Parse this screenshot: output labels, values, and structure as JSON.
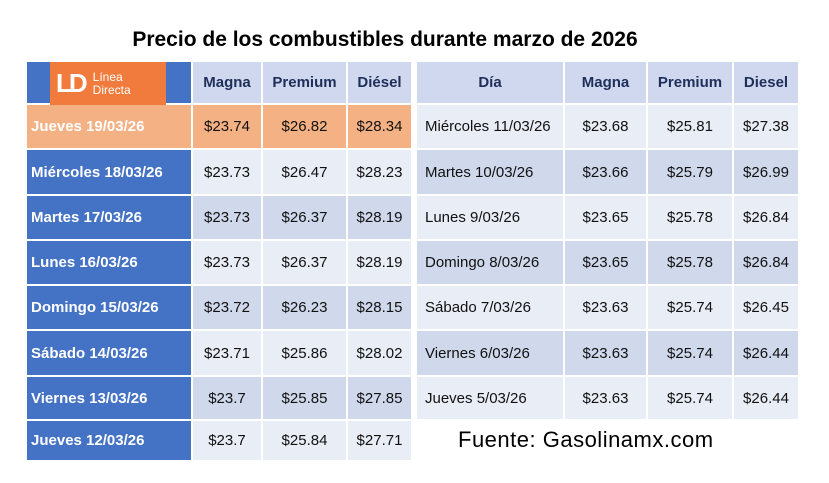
{
  "title": "Precio de los combustibles durante marzo de 2026",
  "logo": {
    "mark": "LD",
    "text": "Línea Directa"
  },
  "left_table": {
    "header": [
      "Magna",
      "Premium",
      "Diésel"
    ],
    "rows": [
      [
        "Jueves 19/03/26",
        "$23.74",
        "$26.82",
        "$28.34"
      ],
      [
        "Miércoles 18/03/26",
        "$23.73",
        "$26.47",
        "$28.23"
      ],
      [
        "Martes 17/03/26",
        "$23.73",
        "$26.37",
        "$28.19"
      ],
      [
        "Lunes 16/03/26",
        "$23.73",
        "$26.37",
        "$28.19"
      ],
      [
        "Domingo 15/03/26",
        "$23.72",
        "$26.23",
        "$28.15"
      ],
      [
        "Sábado 14/03/26",
        "$23.71",
        "$25.86",
        "$28.02"
      ],
      [
        "Viernes 13/03/26",
        "$23.7",
        "$25.85",
        "$27.85"
      ],
      [
        "Jueves 12/03/26",
        "$23.7",
        "$25.84",
        "$27.71"
      ]
    ]
  },
  "right_table": {
    "header": [
      "Día",
      "Magna",
      "Premium",
      "Diesel"
    ],
    "rows": [
      [
        "Miércoles 11/03/26",
        "$23.68",
        "$25.81",
        "$27.38"
      ],
      [
        "Martes 10/03/26",
        "$23.66",
        "$25.79",
        "$26.99"
      ],
      [
        "Lunes 9/03/26",
        "$23.65",
        "$25.78",
        "$26.84"
      ],
      [
        "Domingo 8/03/26",
        "$23.65",
        "$25.78",
        "$26.84"
      ],
      [
        "Sábado 7/03/26",
        "$23.63",
        "$25.74",
        "$26.45"
      ],
      [
        "Viernes 6/03/26",
        "$23.63",
        "$25.74",
        "$26.44"
      ],
      [
        "Jueves 5/03/26",
        "$23.63",
        "$25.74",
        "$26.44"
      ]
    ]
  },
  "source": "Fuente: Gasolinamx.com"
}
